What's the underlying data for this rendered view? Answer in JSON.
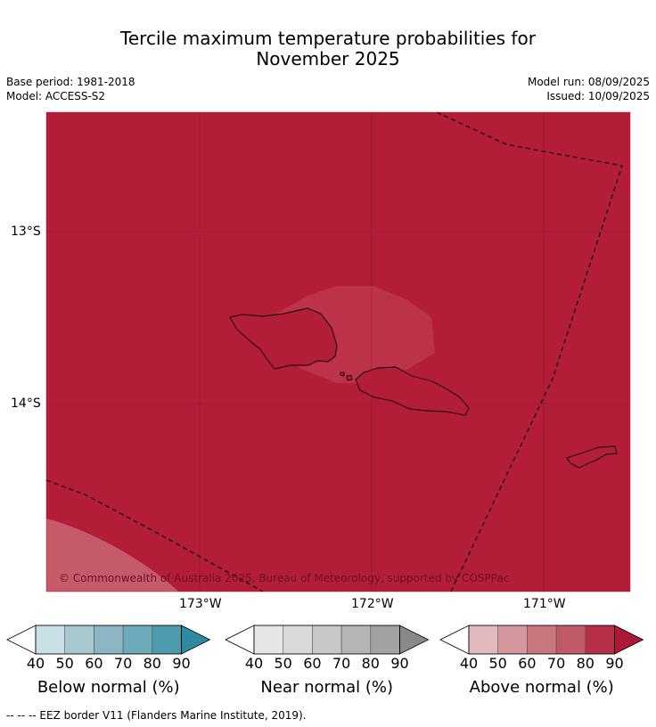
{
  "title": {
    "line1": "Tercile maximum temperature probabilities for",
    "line2": "November 2025"
  },
  "meta": {
    "base_period": "Base period: 1981-2018",
    "model": "Model: ACCESS-S2",
    "model_run": "Model run: 08/09/2025",
    "issued": "Issued: 10/09/2025"
  },
  "map": {
    "lat_ticks": [
      "13°S",
      "14°S"
    ],
    "lon_ticks": [
      "173°W",
      "172°W",
      "171°W"
    ],
    "copyright": "© Commonwealth of Australia 2025, Bureau of Meteorology, supported by COSPPac",
    "colors": {
      "above_80_90": "#b31d38",
      "above_70_80": "#bc3249",
      "above_60_70": "#c55a6a",
      "eez_border": "#000000",
      "coastline": "#000000"
    }
  },
  "colorbars": [
    {
      "label": "Below normal (%)",
      "ticks": [
        "40",
        "50",
        "60",
        "70",
        "80",
        "90"
      ],
      "colors": [
        "#ffffff",
        "#c9e0e6",
        "#a7c8cf",
        "#8bb7c4",
        "#6dabba",
        "#4b9bad",
        "#2f8aa0"
      ]
    },
    {
      "label": "Near normal (%)",
      "ticks": [
        "40",
        "50",
        "60",
        "70",
        "80",
        "90"
      ],
      "colors": [
        "#ffffff",
        "#e6e6e6",
        "#d9d9d9",
        "#c8c8c8",
        "#b5b5b5",
        "#a2a2a2",
        "#888888"
      ]
    },
    {
      "label": "Above normal (%)",
      "ticks": [
        "40",
        "50",
        "60",
        "70",
        "80",
        "90"
      ],
      "colors": [
        "#ffffff",
        "#e3b9c0",
        "#d4979f",
        "#c9777f",
        "#c15a68",
        "#b72f48",
        "#ad1839"
      ]
    }
  ],
  "footnote": "--  --  -- EEZ border V11 (Flanders Marine Institute, 2019)."
}
